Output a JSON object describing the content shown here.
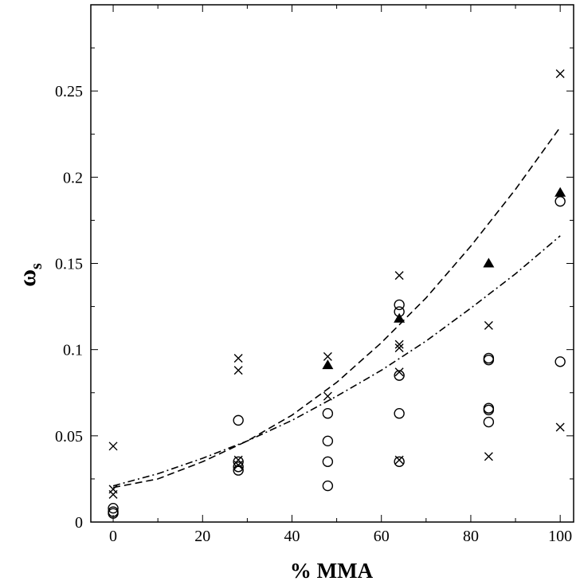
{
  "chart_data": {
    "type": "scatter",
    "xlabel": "% MMA",
    "ylabel_symbol": "ω",
    "ylabel_subscript": "s",
    "xlim": [
      -5,
      103
    ],
    "ylim": [
      0,
      0.3
    ],
    "xticks": [
      0,
      20,
      40,
      60,
      80,
      100
    ],
    "xtick_labels": [
      "0",
      "20",
      "40",
      "60",
      "80",
      "100"
    ],
    "yticks": [
      0,
      0.05,
      0.1,
      0.15,
      0.2,
      0.25
    ],
    "ytick_labels": [
      "0",
      "0.05",
      "0.1",
      "0.15",
      "0.2",
      "0.25"
    ],
    "grid": false,
    "legend": "none",
    "series": [
      {
        "marker": "cross",
        "points": [
          [
            0,
            0.044
          ],
          [
            0,
            0.019
          ],
          [
            0,
            0.016
          ],
          [
            28,
            0.095
          ],
          [
            28,
            0.088
          ],
          [
            28,
            0.036
          ],
          [
            28,
            0.033
          ],
          [
            48,
            0.096
          ],
          [
            48,
            0.073
          ],
          [
            64,
            0.143
          ],
          [
            64,
            0.103
          ],
          [
            64,
            0.101
          ],
          [
            64,
            0.087
          ],
          [
            64,
            0.036
          ],
          [
            84,
            0.114
          ],
          [
            84,
            0.038
          ],
          [
            100,
            0.26
          ],
          [
            100,
            0.055
          ]
        ]
      },
      {
        "marker": "circle",
        "points": [
          [
            0,
            0.008
          ],
          [
            0,
            0.006
          ],
          [
            0,
            0.005
          ],
          [
            28,
            0.059
          ],
          [
            28,
            0.035
          ],
          [
            28,
            0.032
          ],
          [
            28,
            0.03
          ],
          [
            48,
            0.063
          ],
          [
            48,
            0.047
          ],
          [
            48,
            0.035
          ],
          [
            48,
            0.021
          ],
          [
            64,
            0.126
          ],
          [
            64,
            0.122
          ],
          [
            64,
            0.085
          ],
          [
            64,
            0.063
          ],
          [
            64,
            0.035
          ],
          [
            84,
            0.095
          ],
          [
            84,
            0.094
          ],
          [
            84,
            0.066
          ],
          [
            84,
            0.065
          ],
          [
            84,
            0.058
          ],
          [
            100,
            0.186
          ],
          [
            100,
            0.093
          ]
        ]
      },
      {
        "marker": "triangle",
        "points": [
          [
            48,
            0.091
          ],
          [
            64,
            0.118
          ],
          [
            84,
            0.15
          ],
          [
            100,
            0.191
          ]
        ]
      },
      {
        "marker": "dashed-line",
        "points": [
          [
            0,
            0.02
          ],
          [
            10,
            0.025
          ],
          [
            20,
            0.035
          ],
          [
            30,
            0.047
          ],
          [
            40,
            0.062
          ],
          [
            50,
            0.081
          ],
          [
            60,
            0.104
          ],
          [
            70,
            0.13
          ],
          [
            80,
            0.16
          ],
          [
            90,
            0.193
          ],
          [
            100,
            0.229
          ]
        ]
      },
      {
        "marker": "dash-dot-line",
        "points": [
          [
            0,
            0.021
          ],
          [
            10,
            0.028
          ],
          [
            20,
            0.037
          ],
          [
            30,
            0.047
          ],
          [
            40,
            0.059
          ],
          [
            50,
            0.073
          ],
          [
            60,
            0.088
          ],
          [
            70,
            0.105
          ],
          [
            80,
            0.124
          ],
          [
            90,
            0.144
          ],
          [
            100,
            0.166
          ]
        ]
      }
    ]
  }
}
